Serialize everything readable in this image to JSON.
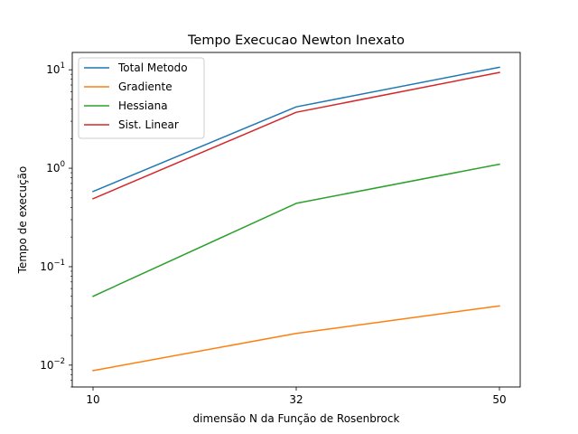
{
  "chart_data": {
    "type": "line",
    "title": "Tempo Execucao Newton Inexato",
    "xlabel": "dimensão N da Função de Rosenbrock",
    "ylabel": "Tempo de execução",
    "x": [
      10,
      32,
      50
    ],
    "x_ticks": [
      "10",
      "32",
      "50"
    ],
    "x_scale": "categorical",
    "y_scale": "log",
    "ylim": [
      0.006,
      15
    ],
    "y_ticks": [
      {
        "value": 0.01,
        "base": "10",
        "exp": "−2"
      },
      {
        "value": 0.1,
        "base": "10",
        "exp": "−1"
      },
      {
        "value": 1,
        "base": "10",
        "exp": "0"
      },
      {
        "value": 10,
        "base": "10",
        "exp": "1"
      }
    ],
    "legend_position": "top-left",
    "grid": false,
    "series": [
      {
        "name": "Total Metodo",
        "color": "#1f77b4",
        "values": [
          0.58,
          4.2,
          10.6
        ]
      },
      {
        "name": "Gradiente",
        "color": "#ff7f0e",
        "values": [
          0.0088,
          0.021,
          0.04
        ]
      },
      {
        "name": "Hessiana",
        "color": "#2ca02c",
        "values": [
          0.05,
          0.44,
          1.1
        ]
      },
      {
        "name": "Sist. Linear",
        "color": "#d62728",
        "values": [
          0.49,
          3.7,
          9.4
        ]
      }
    ]
  }
}
